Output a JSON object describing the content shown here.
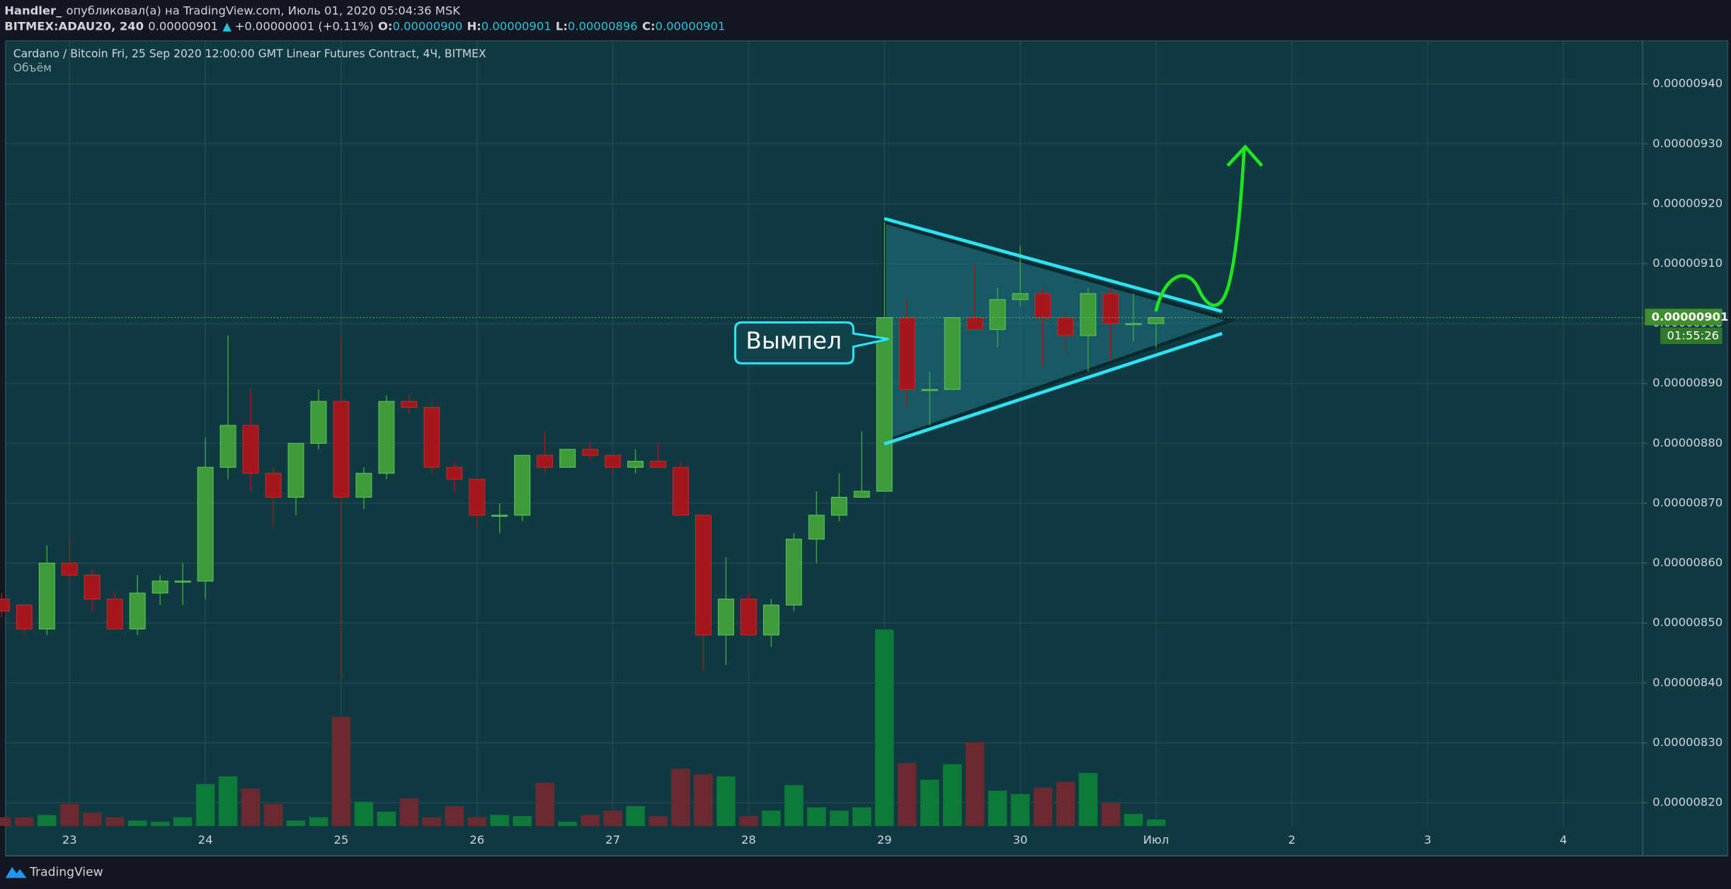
{
  "header": {
    "user": "Handler_",
    "published": "опубликовал(а) на TradingView.com, Июль 01, 2020 05:04:36 MSK",
    "symbol": "BITMEX:ADAU20, 240",
    "price": "0.00000901",
    "change": "+0.00000001 (+0.11%)",
    "o_label": "O:",
    "o": "0.00000900",
    "h_label": "H:",
    "h": "0.00000901",
    "l_label": "L:",
    "l": "0.00000896",
    "c_label": "C:",
    "c": "0.00000901"
  },
  "footer": {
    "brand": "TradingView"
  },
  "chart_data": {
    "type": "candlestick",
    "title": "Cardano / Bitcoin Fri, 25 Sep 2020 12:00:00 GMT Linear Futures Contract, 4Ч, BITMEX",
    "subtitle": "Объём",
    "annotation": "Вымпел",
    "last_price_label": "0.00000901",
    "countdown": "01:55:26",
    "up_color": "#3d9b3c",
    "down_color": "#a3171d",
    "volume_up_color": "#0e7a3a",
    "volume_down_color": "#6b2a30",
    "grid": true,
    "x": [
      0,
      1,
      2,
      3,
      4,
      5,
      6,
      7,
      8,
      9,
      10,
      11,
      12,
      13,
      14,
      15,
      16,
      17,
      18,
      19,
      20,
      21,
      22,
      23,
      24,
      25,
      26,
      27,
      28,
      29,
      30,
      31,
      32,
      33,
      34,
      35,
      36,
      37,
      38,
      39,
      40,
      41,
      42,
      43,
      44,
      45,
      46,
      47,
      48,
      49,
      50,
      51
    ],
    "open": [
      8.54e-06,
      8.53e-06,
      8.49e-06,
      8.6e-06,
      8.58e-06,
      8.54e-06,
      8.49e-06,
      8.55e-06,
      8.57e-06,
      8.57e-06,
      8.76e-06,
      8.83e-06,
      8.75e-06,
      8.71e-06,
      8.8e-06,
      8.87e-06,
      8.71e-06,
      8.75e-06,
      8.87e-06,
      8.86e-06,
      8.76e-06,
      8.74e-06,
      8.68e-06,
      8.68e-06,
      8.78e-06,
      8.76e-06,
      8.79e-06,
      8.78e-06,
      8.76e-06,
      8.77e-06,
      8.76e-06,
      8.68e-06,
      8.48e-06,
      8.54e-06,
      8.48e-06,
      8.53e-06,
      8.64e-06,
      8.68e-06,
      8.71e-06,
      8.72e-06,
      9.01e-06,
      8.89e-06,
      8.89e-06,
      9.01e-06,
      8.99e-06,
      9.04e-06,
      9.05e-06,
      9.01e-06,
      8.98e-06,
      9.05e-06,
      9e-06,
      9e-06
    ],
    "high": [
      8.55e-06,
      8.53e-06,
      8.63e-06,
      8.64e-06,
      8.59e-06,
      8.55e-06,
      8.58e-06,
      8.58e-06,
      8.6e-06,
      8.81e-06,
      8.98e-06,
      8.89e-06,
      8.76e-06,
      8.8e-06,
      8.89e-06,
      8.98e-06,
      8.76e-06,
      8.88e-06,
      8.88e-06,
      8.87e-06,
      8.77e-06,
      8.74e-06,
      8.7e-06,
      8.78e-06,
      8.82e-06,
      8.79e-06,
      8.8e-06,
      8.78e-06,
      8.79e-06,
      8.8e-06,
      8.77e-06,
      8.68e-06,
      8.61e-06,
      8.55e-06,
      8.54e-06,
      8.65e-06,
      8.72e-06,
      8.75e-06,
      8.82e-06,
      9.17e-06,
      9.04e-06,
      8.92e-06,
      9.01e-06,
      9.1e-06,
      9.06e-06,
      9.13e-06,
      9.06e-06,
      9.02e-06,
      9.06e-06,
      9.06e-06,
      9.05e-06,
      9.01e-06
    ],
    "low": [
      8.51e-06,
      8.48e-06,
      8.48e-06,
      8.57e-06,
      8.52e-06,
      8.49e-06,
      8.48e-06,
      8.53e-06,
      8.53e-06,
      8.54e-06,
      8.74e-06,
      8.72e-06,
      8.66e-06,
      8.68e-06,
      8.79e-06,
      8.41e-06,
      8.69e-06,
      8.74e-06,
      8.85e-06,
      8.75e-06,
      8.72e-06,
      8.66e-06,
      8.65e-06,
      8.67e-06,
      8.75e-06,
      8.76e-06,
      8.77e-06,
      8.75e-06,
      8.75e-06,
      8.76e-06,
      8.68e-06,
      8.42e-06,
      8.43e-06,
      8.48e-06,
      8.46e-06,
      8.52e-06,
      8.6e-06,
      8.67e-06,
      8.71e-06,
      8.72e-06,
      8.86e-06,
      8.83e-06,
      8.89e-06,
      8.99e-06,
      8.96e-06,
      9.03e-06,
      8.93e-06,
      8.95e-06,
      8.92e-06,
      8.94e-06,
      8.97e-06,
      8.96e-06
    ],
    "close": [
      8.52e-06,
      8.49e-06,
      8.6e-06,
      8.58e-06,
      8.54e-06,
      8.49e-06,
      8.55e-06,
      8.57e-06,
      8.57e-06,
      8.76e-06,
      8.83e-06,
      8.75e-06,
      8.71e-06,
      8.8e-06,
      8.87e-06,
      8.71e-06,
      8.75e-06,
      8.87e-06,
      8.86e-06,
      8.76e-06,
      8.74e-06,
      8.68e-06,
      8.68e-06,
      8.78e-06,
      8.76e-06,
      8.79e-06,
      8.78e-06,
      8.76e-06,
      8.77e-06,
      8.76e-06,
      8.68e-06,
      8.48e-06,
      8.54e-06,
      8.48e-06,
      8.53e-06,
      8.64e-06,
      8.68e-06,
      8.71e-06,
      8.72e-06,
      9.01e-06,
      8.89e-06,
      8.89e-06,
      9.01e-06,
      8.99e-06,
      9.04e-06,
      9.05e-06,
      9.01e-06,
      8.98e-06,
      9.05e-06,
      9e-06,
      9e-06,
      9.01e-06
    ],
    "volume": [
      8,
      8,
      10,
      20,
      12,
      8,
      5,
      4,
      8,
      38,
      45,
      34,
      20,
      5,
      8,
      99,
      22,
      13,
      25,
      8,
      18,
      8,
      10,
      9,
      39,
      4,
      10,
      14,
      18,
      9,
      52,
      47,
      45,
      9,
      14,
      37,
      17,
      14,
      17,
      178,
      57,
      42,
      56,
      76,
      32,
      29,
      35,
      40,
      48,
      21,
      11,
      6
    ],
    "volume_ylim": [
      0,
      711
    ],
    "xlim": [
      0.17,
      72.5
    ],
    "xticks": [
      {
        "value": 3,
        "label": "23"
      },
      {
        "value": 9,
        "label": "24"
      },
      {
        "value": 15,
        "label": "25"
      },
      {
        "value": 21,
        "label": "26"
      },
      {
        "value": 27,
        "label": "27"
      },
      {
        "value": 33,
        "label": "28"
      },
      {
        "value": 39,
        "label": "29"
      },
      {
        "value": 45,
        "label": "30"
      },
      {
        "value": 51,
        "label": "Июл"
      },
      {
        "value": 57,
        "label": "2"
      },
      {
        "value": 63,
        "label": "3"
      },
      {
        "value": 69,
        "label": "4"
      }
    ],
    "ylim": [
      8.161e-06,
      9.472e-06
    ],
    "yticks": [
      {
        "value": 9.4e-06,
        "label": "0.00000940"
      },
      {
        "value": 9.3e-06,
        "label": "0.00000930"
      },
      {
        "value": 9.2e-06,
        "label": "0.00000920"
      },
      {
        "value": 9.1e-06,
        "label": "0.00000910"
      },
      {
        "value": 9e-06,
        "label": "0.00000900"
      },
      {
        "value": 8.9e-06,
        "label": "0.00000890"
      },
      {
        "value": 8.8e-06,
        "label": "0.00000880"
      },
      {
        "value": 8.7e-06,
        "label": "0.00000870"
      },
      {
        "value": 8.6e-06,
        "label": "0.00000860"
      },
      {
        "value": 8.5e-06,
        "label": "0.00000850"
      },
      {
        "value": 8.4e-06,
        "label": "0.00000840"
      },
      {
        "value": 8.3e-06,
        "label": "0.00000830"
      },
      {
        "value": 8.2e-06,
        "label": "0.00000820"
      }
    ]
  }
}
